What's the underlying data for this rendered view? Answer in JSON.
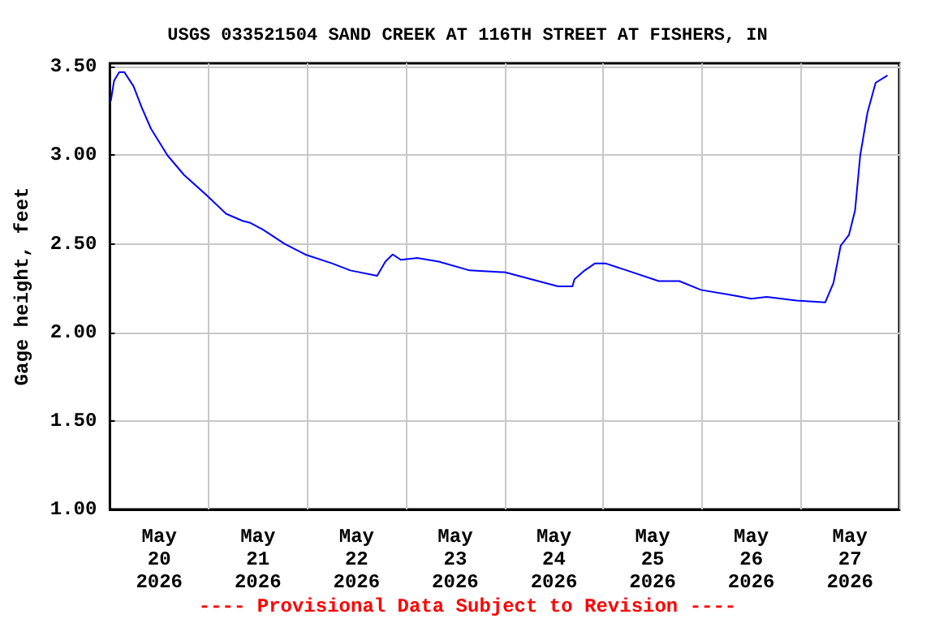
{
  "chart_data": {
    "type": "line",
    "title": "USGS 033521504 SAND CREEK AT 116TH STREET AT FISHERS, IN",
    "ylabel": "Gage height, feet",
    "annotations": [
      "---- Provisional Data Subject to Revision ----"
    ],
    "x": [
      "2026-05-20T00:15",
      "2026-05-20T01:00",
      "2026-05-20T02:15",
      "2026-05-20T03:30",
      "2026-05-20T05:45",
      "2026-05-20T07:45",
      "2026-05-20T10:00",
      "2026-05-20T14:00",
      "2026-05-20T18:00",
      "2026-05-20T23:45",
      "2026-05-21T04:15",
      "2026-05-21T08:15",
      "2026-05-21T10:00",
      "2026-05-21T13:15",
      "2026-05-21T18:30",
      "2026-05-21T23:30",
      "2026-05-22T06:00",
      "2026-05-22T10:30",
      "2026-05-22T17:00",
      "2026-05-22T19:00",
      "2026-05-22T20:45",
      "2026-05-22T22:45",
      "2026-05-23T02:45",
      "2026-05-23T08:00",
      "2026-05-23T15:30",
      "2026-05-23T23:15",
      "2026-05-24T00:00",
      "2026-05-24T06:30",
      "2026-05-24T13:00",
      "2026-05-24T16:30",
      "2026-05-24T17:00",
      "2026-05-24T19:30",
      "2026-05-24T22:00",
      "2026-05-25T00:30",
      "2026-05-25T05:45",
      "2026-05-25T13:30",
      "2026-05-25T18:30",
      "2026-05-25T23:45",
      "2026-05-26T07:30",
      "2026-05-26T12:00",
      "2026-05-26T15:45",
      "2026-05-26T23:00",
      "2026-05-27T06:00",
      "2026-05-27T08:00",
      "2026-05-27T09:45",
      "2026-05-27T11:45",
      "2026-05-27T13:15",
      "2026-05-27T14:30",
      "2026-05-27T16:15",
      "2026-05-27T18:15",
      "2026-05-27T21:00"
    ],
    "series": [
      {
        "color": "#0000ff",
        "values": [
          3.31,
          3.42,
          3.47,
          3.47,
          3.39,
          3.27,
          3.15,
          3.0,
          2.89,
          2.77,
          2.67,
          2.63,
          2.62,
          2.58,
          2.5,
          2.44,
          2.39,
          2.35,
          2.32,
          2.4,
          2.44,
          2.41,
          2.42,
          2.4,
          2.35,
          2.34,
          2.34,
          2.3,
          2.26,
          2.26,
          2.3,
          2.35,
          2.39,
          2.39,
          2.35,
          2.29,
          2.29,
          2.24,
          2.21,
          2.19,
          2.2,
          2.18,
          2.17,
          2.28,
          2.49,
          2.55,
          2.69,
          3.0,
          3.24,
          3.41,
          3.45
        ]
      }
    ],
    "xlim": [
      "2026-05-20T00:00",
      "2026-05-28T00:00"
    ],
    "xticks": [
      {
        "value": "2026-05-20T00:00",
        "label": null
      },
      {
        "value": "2026-05-20T12:00",
        "label": "May\n20\n2026"
      },
      {
        "value": "2026-05-21T00:00",
        "label": null
      },
      {
        "value": "2026-05-21T12:00",
        "label": "May\n21\n2026"
      },
      {
        "value": "2026-05-22T00:00",
        "label": null
      },
      {
        "value": "2026-05-22T12:00",
        "label": "May\n22\n2026"
      },
      {
        "value": "2026-05-23T00:00",
        "label": null
      },
      {
        "value": "2026-05-23T12:00",
        "label": "May\n23\n2026"
      },
      {
        "value": "2026-05-24T00:00",
        "label": null
      },
      {
        "value": "2026-05-24T12:00",
        "label": "May\n24\n2026"
      },
      {
        "value": "2026-05-25T00:00",
        "label": null
      },
      {
        "value": "2026-05-25T12:00",
        "label": "May\n25\n2026"
      },
      {
        "value": "2026-05-26T00:00",
        "label": null
      },
      {
        "value": "2026-05-26T12:00",
        "label": "May\n26\n2026"
      },
      {
        "value": "2026-05-27T00:00",
        "label": null
      },
      {
        "value": "2026-05-27T12:00",
        "label": "May\n27\n2026"
      },
      {
        "value": "2026-05-28T00:00",
        "label": null
      }
    ],
    "ylim": [
      1.0,
      3.52
    ],
    "yticks": [
      {
        "value": 1.0,
        "label": "1.00"
      },
      {
        "value": 1.5,
        "label": "1.50"
      },
      {
        "value": 2.0,
        "label": "2.00"
      },
      {
        "value": 2.5,
        "label": "2.50"
      },
      {
        "value": 3.0,
        "label": "3.00"
      },
      {
        "value": 3.5,
        "label": "3.50"
      }
    ],
    "grid": true,
    "marker": "none",
    "line_style": "solid"
  }
}
